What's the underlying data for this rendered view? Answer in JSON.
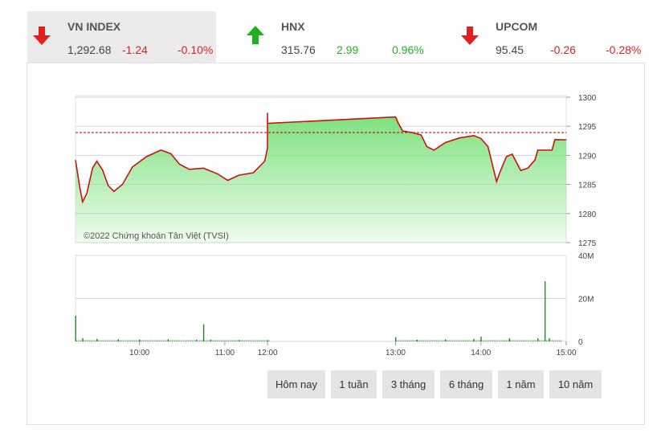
{
  "indices": [
    {
      "name": "VN INDEX",
      "value": "1,292.68",
      "change": "-1.24",
      "pct": "-0.10%",
      "direction": "down",
      "active": true
    },
    {
      "name": "HNX",
      "value": "315.76",
      "change": "2.99",
      "pct": "0.96%",
      "direction": "up",
      "active": false
    },
    {
      "name": "UPCOM",
      "value": "95.45",
      "change": "-0.26",
      "pct": "-0.28%",
      "direction": "down",
      "active": false
    }
  ],
  "colors": {
    "down": "#e02020",
    "up": "#22b022",
    "line": "#cc1111",
    "area": "#7be07b",
    "ref": "#b00000",
    "volume": "#1f8a1f"
  },
  "copyright": "©2022 Chứng khoán Tân Việt (TVSI)",
  "ranges": [
    "Hôm nay",
    "1 tuần",
    "3 tháng",
    "6 tháng",
    "1 năm",
    "10 năm"
  ],
  "chart_data": {
    "type": "area",
    "title": "",
    "reference": 1293.92,
    "price_axis": {
      "ylim": [
        1275,
        1300
      ],
      "ticks": [
        1300,
        1295,
        1290,
        1285,
        1280,
        1275
      ]
    },
    "volume_axis": {
      "ylim": [
        0,
        40
      ],
      "unit": "M",
      "ticks": [
        "40M",
        "20M",
        "0"
      ]
    },
    "x_ticks": [
      "10:00",
      "11:00",
      "12:00",
      "13:00",
      "14:00",
      "15:00"
    ],
    "series": [
      {
        "values": [
          [
            "09:15",
            1289.2
          ],
          [
            "09:18",
            1284.5
          ],
          [
            "09:20",
            1282.0
          ],
          [
            "09:23",
            1283.5
          ],
          [
            "09:27",
            1287.8
          ],
          [
            "09:30",
            1289.0
          ],
          [
            "09:34",
            1287.5
          ],
          [
            "09:38",
            1284.8
          ],
          [
            "09:42",
            1283.8
          ],
          [
            "09:48",
            1285.0
          ],
          [
            "09:55",
            1288.0
          ],
          [
            "10:05",
            1289.8
          ],
          [
            "10:15",
            1290.9
          ],
          [
            "10:22",
            1290.3
          ],
          [
            "10:28",
            1288.5
          ],
          [
            "10:35",
            1287.6
          ],
          [
            "10:45",
            1287.8
          ],
          [
            "10:55",
            1286.8
          ],
          [
            "11:02",
            1285.7
          ],
          [
            "11:10",
            1286.6
          ],
          [
            "11:20",
            1287.0
          ],
          [
            "11:28",
            1289.0
          ],
          [
            "11:33",
            1291.3
          ],
          [
            "11:40",
            1293.5
          ],
          [
            "11:42",
            1295.2
          ],
          [
            "11:45",
            1297.3
          ],
          [
            "11:47",
            1295.2
          ],
          [
            "11:50",
            1293.9
          ],
          [
            "11:53",
            1294.2
          ],
          [
            "11:56",
            1295.0
          ],
          [
            "11:59",
            1295.9
          ],
          [
            "12:00",
            1295.5
          ],
          [
            "13:00",
            1296.6
          ],
          [
            "13:02",
            1295.5
          ],
          [
            "13:05",
            1294.2
          ],
          [
            "13:12",
            1293.9
          ],
          [
            "13:18",
            1293.5
          ],
          [
            "13:22",
            1291.5
          ],
          [
            "13:27",
            1290.9
          ],
          [
            "13:35",
            1292.2
          ],
          [
            "13:45",
            1293.0
          ],
          [
            "13:55",
            1293.4
          ],
          [
            "14:00",
            1292.9
          ],
          [
            "14:05",
            1291.5
          ],
          [
            "14:08",
            1288.5
          ],
          [
            "14:11",
            1285.5
          ],
          [
            "14:14",
            1287.5
          ],
          [
            "14:18",
            1289.8
          ],
          [
            "14:22",
            1290.2
          ],
          [
            "14:25",
            1288.8
          ],
          [
            "14:28",
            1287.4
          ],
          [
            "14:33",
            1287.8
          ],
          [
            "14:38",
            1289.2
          ],
          [
            "14:40",
            1290.9
          ],
          [
            "14:48",
            1290.9
          ],
          [
            "14:50",
            1290.9
          ],
          [
            "14:52",
            1292.7
          ],
          [
            "15:00",
            1292.68
          ]
        ]
      }
    ],
    "volume": [
      [
        "09:15",
        12
      ],
      [
        "09:20",
        1.5
      ],
      [
        "09:30",
        1.2
      ],
      [
        "09:45",
        1.0
      ],
      [
        "10:00",
        0.8
      ],
      [
        "10:20",
        1.0
      ],
      [
        "10:40",
        0.8
      ],
      [
        "10:45",
        8
      ],
      [
        "10:50",
        0.8
      ],
      [
        "11:10",
        0.6
      ],
      [
        "11:30",
        0.6
      ],
      [
        "13:00",
        2
      ],
      [
        "13:15",
        0.8
      ],
      [
        "13:35",
        1.0
      ],
      [
        "13:55",
        1.2
      ],
      [
        "14:00",
        2.2
      ],
      [
        "14:20",
        1.5
      ],
      [
        "14:40",
        1.5
      ],
      [
        "14:45",
        28
      ],
      [
        "14:48",
        1.5
      ]
    ]
  }
}
